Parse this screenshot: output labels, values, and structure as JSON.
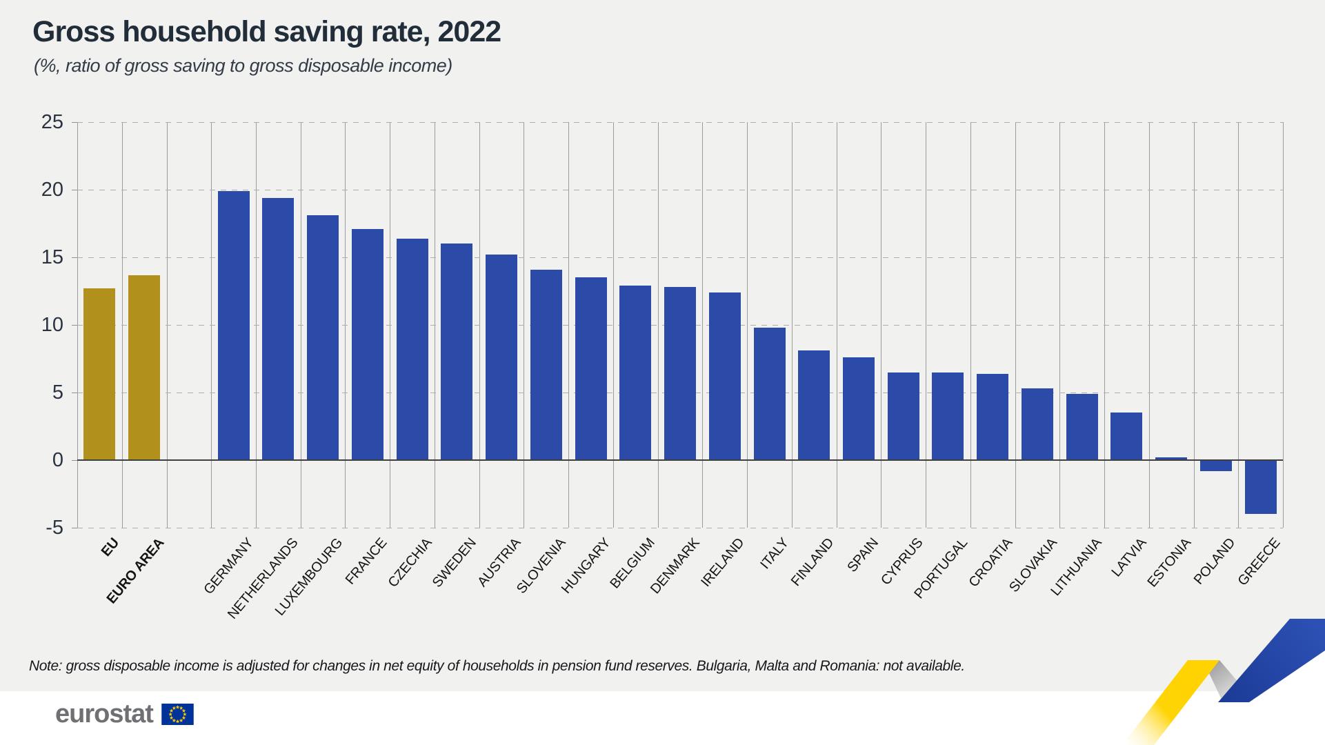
{
  "header": {
    "title": "Gross household saving rate, 2022",
    "subtitle": "(%, ratio of gross saving to gross disposable income)"
  },
  "note": {
    "text": "Note: gross disposable income is adjusted for changes in net equity of households in pension fund reserves. Bulgaria, Malta and Romania: not available."
  },
  "footer": {
    "logo_text": "eurostat"
  },
  "colors": {
    "background": "#f1f1f0",
    "bar_blue": "#2c4aa7",
    "bar_gold": "#b1901b",
    "zero_axis": "#3f3f3f",
    "gridline": "#adadad",
    "ribbon_yellow": "#ffd200",
    "ribbon_blue": "#2447a8",
    "ribbon_gray": "#a0a0a0",
    "flag_blue": "#003399",
    "flag_stars": "#ffcc00",
    "logo_gray": "#6e7073"
  },
  "chart_data": {
    "type": "bar",
    "title": "Gross household saving rate, 2022",
    "subtitle": "(%, ratio of gross saving to gross disposable income)",
    "xlabel": "",
    "ylabel": "%, ratio of gross saving to gross disposable income",
    "ylim": [
      -5,
      25
    ],
    "yticks": [
      25,
      20,
      15,
      10,
      5,
      0,
      -5
    ],
    "grid": "horizontal dashed gridlines; vertical column separator lines; legend none",
    "gap_after_index": 1,
    "highlight_categories": [
      "EU",
      "EURO AREA"
    ],
    "categories": [
      "EU",
      "EURO AREA",
      "GERMANY",
      "NETHERLANDS",
      "LUXEMBOURG",
      "FRANCE",
      "CZECHIA",
      "SWEDEN",
      "AUSTRIA",
      "SLOVENIA",
      "HUNGARY",
      "BELGIUM",
      "DENMARK",
      "IRELAND",
      "ITALY",
      "FINLAND",
      "SPAIN",
      "CYPRUS",
      "PORTUGAL",
      "CROATIA",
      "SLOVAKIA",
      "LITHUANIA",
      "LATVIA",
      "ESTONIA",
      "POLAND",
      "GREECE"
    ],
    "values": [
      12.7,
      13.7,
      19.9,
      19.4,
      18.1,
      17.1,
      16.4,
      16.0,
      15.2,
      14.1,
      13.5,
      12.9,
      12.8,
      12.4,
      9.8,
      8.1,
      7.6,
      6.5,
      6.5,
      6.4,
      5.3,
      4.9,
      3.5,
      0.2,
      -0.8,
      -4.0
    ]
  }
}
